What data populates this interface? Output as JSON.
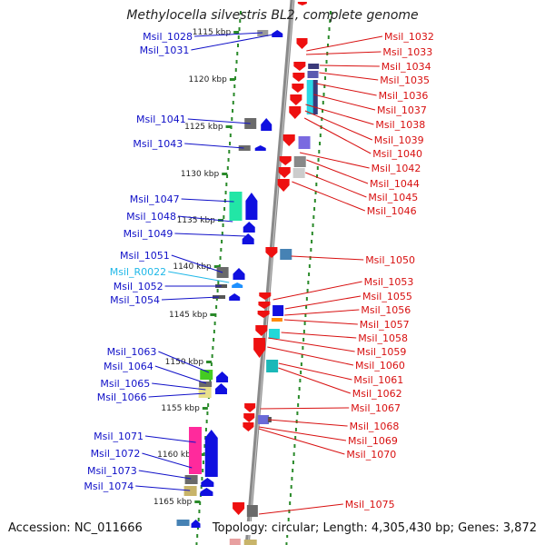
{
  "title": "Methylocella silvestris BL2, complete genome",
  "footer": {
    "accession": "Accession: NC_011666",
    "stats": "Topology: circular; Length: 4,305,430 bp; Genes: 3,872"
  },
  "colors": {
    "left_label": "#1010c8",
    "right_label": "#d81010",
    "rna_label": "#20b8e8",
    "backbone": "#8a8a8a",
    "track_dots": "#2a8a2a"
  },
  "kbp_marks": [
    "1115 kbp",
    "1120 kbp",
    "1125 kbp",
    "1130 kbp",
    "1135 kbp",
    "1140 kbp",
    "1145 kbp",
    "1150 kbp",
    "1155 kbp",
    "1160 kbp",
    "1165 kbp"
  ],
  "left_labels": [
    {
      "text": "Msil_1028",
      "kind": "gene"
    },
    {
      "text": "Msil_1031",
      "kind": "gene"
    },
    {
      "text": "Msil_1041",
      "kind": "gene"
    },
    {
      "text": "Msil_1043",
      "kind": "gene"
    },
    {
      "text": "Msil_1047",
      "kind": "gene"
    },
    {
      "text": "Msil_1048",
      "kind": "gene"
    },
    {
      "text": "Msil_1049",
      "kind": "gene"
    },
    {
      "text": "Msil_1051",
      "kind": "gene"
    },
    {
      "text": "Msil_R0022",
      "kind": "rna"
    },
    {
      "text": "Msil_1052",
      "kind": "gene"
    },
    {
      "text": "Msil_1054",
      "kind": "gene"
    },
    {
      "text": "Msil_1063",
      "kind": "gene"
    },
    {
      "text": "Msil_1064",
      "kind": "gene"
    },
    {
      "text": "Msil_1065",
      "kind": "gene"
    },
    {
      "text": "Msil_1066",
      "kind": "gene"
    },
    {
      "text": "Msil_1071",
      "kind": "gene"
    },
    {
      "text": "Msil_1072",
      "kind": "gene"
    },
    {
      "text": "Msil_1073",
      "kind": "gene"
    },
    {
      "text": "Msil_1074",
      "kind": "gene"
    }
  ],
  "right_labels": [
    "Msil_1032",
    "Msil_1033",
    "Msil_1034",
    "Msil_1035",
    "Msil_1036",
    "Msil_1037",
    "Msil_1038",
    "Msil_1039",
    "Msil_1040",
    "Msil_1042",
    "Msil_1044",
    "Msil_1045",
    "Msil_1046",
    "Msil_1050",
    "Msil_1053",
    "Msil_1055",
    "Msil_1056",
    "Msil_1057",
    "Msil_1058",
    "Msil_1059",
    "Msil_1060",
    "Msil_1061",
    "Msil_1062",
    "Msil_1067",
    "Msil_1068",
    "Msil_1069",
    "Msil_1070",
    "Msil_1075"
  ]
}
